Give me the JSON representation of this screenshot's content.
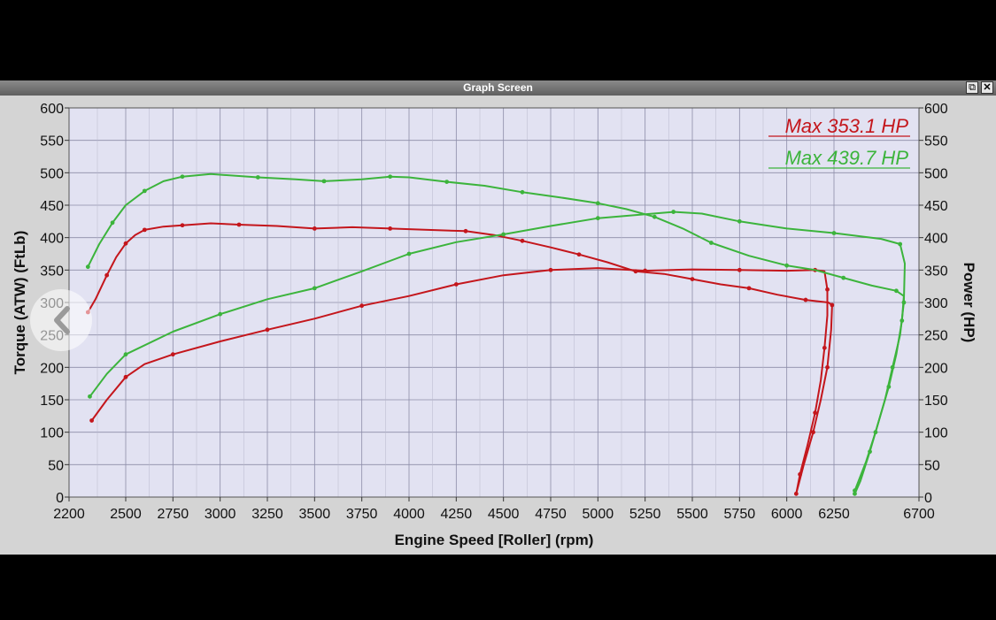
{
  "window": {
    "title": "Graph Screen",
    "restore_glyph": "⧉",
    "close_glyph": "✕"
  },
  "nav": {
    "icon": "chevron-left-icon"
  },
  "colors": {
    "plot_bg": "#e2e2f2",
    "grid": "#8c8ca8",
    "red": "#c4161c",
    "green": "#3cb43c"
  },
  "chart_data": {
    "type": "line",
    "xlabel": "Engine Speed [Roller] (rpm)",
    "ylabel": "Torque (ATW) (FtLb)",
    "y2label": "Power (HP)",
    "xlim": [
      2200,
      6700
    ],
    "ylim": [
      0,
      600
    ],
    "y2lim": [
      0,
      600
    ],
    "x_ticks": [
      2200,
      2500,
      2750,
      3000,
      3250,
      3500,
      3750,
      4000,
      4250,
      4500,
      4750,
      5000,
      5250,
      5500,
      5750,
      6000,
      6250,
      6700
    ],
    "y_ticks": [
      0,
      50,
      100,
      150,
      200,
      250,
      300,
      350,
      400,
      450,
      500,
      550,
      600
    ],
    "grid": true,
    "annotations": [
      {
        "text": "Max 353.1 HP",
        "color": "red"
      },
      {
        "text": "Max 439.7 HP",
        "color": "green"
      }
    ],
    "series": [
      {
        "kind": "torque",
        "color": "red",
        "points": [
          [
            2300,
            285
          ],
          [
            2340,
            305
          ],
          [
            2400,
            342
          ],
          [
            2450,
            370
          ],
          [
            2500,
            391
          ],
          [
            2550,
            404
          ],
          [
            2600,
            412
          ],
          [
            2700,
            417
          ],
          [
            2800,
            419
          ],
          [
            2950,
            422
          ],
          [
            3100,
            420
          ],
          [
            3300,
            418
          ],
          [
            3500,
            414
          ],
          [
            3700,
            416
          ],
          [
            3900,
            414
          ],
          [
            4100,
            412
          ],
          [
            4300,
            410
          ],
          [
            4450,
            404
          ],
          [
            4600,
            395
          ],
          [
            4750,
            385
          ],
          [
            4900,
            374
          ],
          [
            5050,
            362
          ],
          [
            5200,
            348
          ],
          [
            5350,
            344
          ],
          [
            5500,
            336
          ],
          [
            5650,
            328
          ],
          [
            5800,
            322
          ],
          [
            5950,
            312
          ],
          [
            6100,
            304
          ],
          [
            6220,
            300
          ],
          [
            6240,
            296
          ],
          [
            6235,
            258
          ],
          [
            6215,
            200
          ],
          [
            6180,
            150
          ],
          [
            6140,
            100
          ],
          [
            6090,
            50
          ],
          [
            6050,
            5
          ]
        ]
      },
      {
        "kind": "power",
        "color": "red",
        "points": [
          [
            2320,
            118
          ],
          [
            2400,
            150
          ],
          [
            2500,
            185
          ],
          [
            2600,
            205
          ],
          [
            2750,
            220
          ],
          [
            3000,
            240
          ],
          [
            3250,
            258
          ],
          [
            3500,
            275
          ],
          [
            3750,
            295
          ],
          [
            4000,
            310
          ],
          [
            4250,
            328
          ],
          [
            4500,
            342
          ],
          [
            4750,
            350
          ],
          [
            5000,
            353.1
          ],
          [
            5250,
            349
          ],
          [
            5500,
            351
          ],
          [
            5750,
            350
          ],
          [
            6000,
            349
          ],
          [
            6150,
            350
          ],
          [
            6200,
            348
          ],
          [
            6215,
            320
          ],
          [
            6215,
            280
          ],
          [
            6200,
            230
          ],
          [
            6180,
            180
          ],
          [
            6150,
            130
          ],
          [
            6110,
            80
          ],
          [
            6070,
            35
          ],
          [
            6050,
            5
          ]
        ]
      },
      {
        "kind": "torque",
        "color": "green",
        "points": [
          [
            2300,
            355
          ],
          [
            2360,
            390
          ],
          [
            2430,
            423
          ],
          [
            2500,
            450
          ],
          [
            2600,
            472
          ],
          [
            2700,
            487
          ],
          [
            2800,
            494
          ],
          [
            2950,
            498
          ],
          [
            3200,
            493
          ],
          [
            3400,
            490
          ],
          [
            3550,
            487
          ],
          [
            3750,
            490
          ],
          [
            3900,
            494
          ],
          [
            4000,
            493
          ],
          [
            4200,
            486
          ],
          [
            4400,
            480
          ],
          [
            4600,
            470
          ],
          [
            4800,
            462
          ],
          [
            5000,
            453
          ],
          [
            5150,
            444
          ],
          [
            5300,
            432
          ],
          [
            5450,
            414
          ],
          [
            5600,
            392
          ],
          [
            5800,
            372
          ],
          [
            6000,
            357
          ],
          [
            6150,
            350
          ],
          [
            6300,
            338
          ],
          [
            6450,
            326
          ],
          [
            6580,
            318
          ],
          [
            6620,
            310
          ],
          [
            6610,
            272
          ],
          [
            6580,
            220
          ],
          [
            6540,
            170
          ],
          [
            6490,
            120
          ],
          [
            6440,
            70
          ],
          [
            6390,
            25
          ],
          [
            6360,
            5
          ]
        ]
      },
      {
        "kind": "power",
        "color": "green",
        "points": [
          [
            2310,
            155
          ],
          [
            2400,
            190
          ],
          [
            2500,
            220
          ],
          [
            2750,
            255
          ],
          [
            3000,
            282
          ],
          [
            3250,
            305
          ],
          [
            3500,
            322
          ],
          [
            3750,
            348
          ],
          [
            4000,
            375
          ],
          [
            4250,
            393
          ],
          [
            4500,
            405
          ],
          [
            4750,
            418
          ],
          [
            5000,
            430
          ],
          [
            5250,
            436
          ],
          [
            5400,
            439.7
          ],
          [
            5550,
            437
          ],
          [
            5750,
            425
          ],
          [
            6000,
            414
          ],
          [
            6250,
            407
          ],
          [
            6500,
            398
          ],
          [
            6600,
            390
          ],
          [
            6625,
            360
          ],
          [
            6620,
            300
          ],
          [
            6600,
            250
          ],
          [
            6560,
            200
          ],
          [
            6520,
            150
          ],
          [
            6470,
            100
          ],
          [
            6420,
            55
          ],
          [
            6360,
            10
          ]
        ]
      }
    ]
  }
}
